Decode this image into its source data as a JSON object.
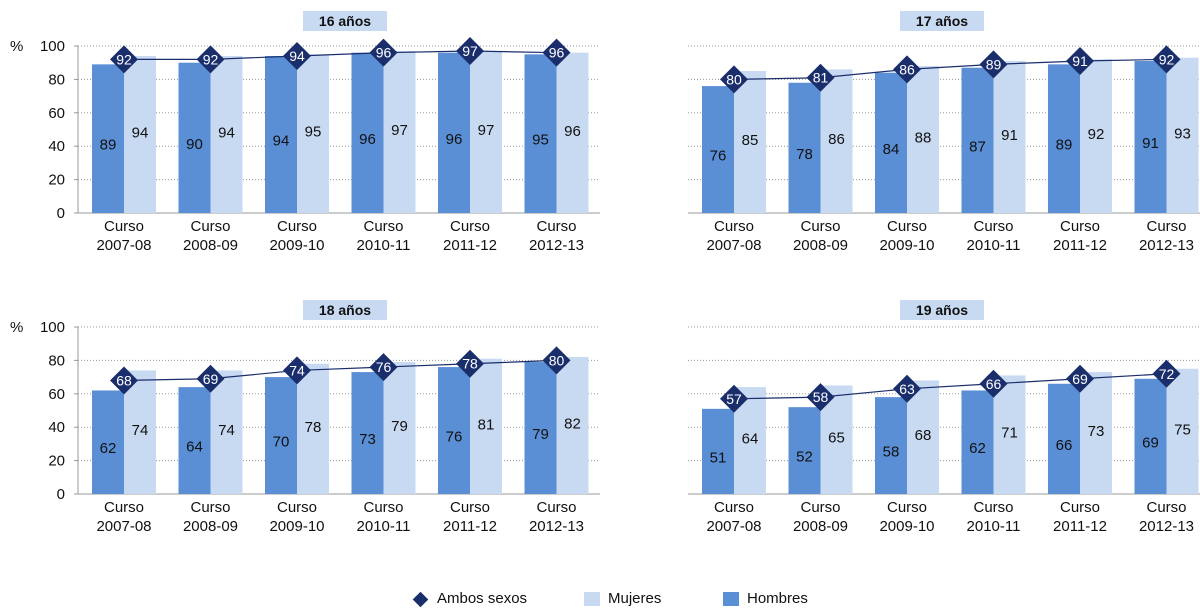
{
  "colors": {
    "hombres": "#5a8fd6",
    "mujeres": "#c8daf2",
    "ambos": "#1a2e6b",
    "title_bg": "#c8daf2",
    "grid": "#9a9a9a"
  },
  "legend": {
    "ambos": "Ambos sexos",
    "mujeres": "Mujeres",
    "hombres": "Hombres"
  },
  "chart_data": [
    {
      "type": "bar",
      "title": "16 años",
      "ylabel": "%",
      "ylim": [
        0,
        100
      ],
      "yticks": [
        0,
        20,
        40,
        60,
        80,
        100
      ],
      "categories": [
        [
          "Curso",
          "2007-08"
        ],
        [
          "Curso",
          "2008-09"
        ],
        [
          "Curso",
          "2009-10"
        ],
        [
          "Curso",
          "2010-11"
        ],
        [
          "Curso",
          "2011-12"
        ],
        [
          "Curso",
          "2012-13"
        ]
      ],
      "series": [
        {
          "name": "Hombres",
          "values": [
            89,
            90,
            94,
            96,
            96,
            95
          ]
        },
        {
          "name": "Mujeres",
          "values": [
            94,
            94,
            95,
            97,
            97,
            96
          ]
        },
        {
          "name": "Ambos sexos",
          "values": [
            92,
            92,
            94,
            96,
            97,
            96
          ]
        }
      ]
    },
    {
      "type": "bar",
      "title": "17 años",
      "ylabel": "",
      "ylim": [
        0,
        100
      ],
      "yticks": [],
      "categories": [
        [
          "Curso",
          "2007-08"
        ],
        [
          "Curso",
          "2008-09"
        ],
        [
          "Curso",
          "2009-10"
        ],
        [
          "Curso",
          "2010-11"
        ],
        [
          "Curso",
          "2011-12"
        ],
        [
          "Curso",
          "2012-13"
        ]
      ],
      "series": [
        {
          "name": "Hombres",
          "values": [
            76,
            78,
            84,
            87,
            89,
            91
          ]
        },
        {
          "name": "Mujeres",
          "values": [
            85,
            86,
            88,
            91,
            92,
            93
          ]
        },
        {
          "name": "Ambos sexos",
          "values": [
            80,
            81,
            86,
            89,
            91,
            92
          ]
        }
      ]
    },
    {
      "type": "bar",
      "title": "18 años",
      "ylabel": "%",
      "ylim": [
        0,
        100
      ],
      "yticks": [
        0,
        20,
        40,
        60,
        80,
        100
      ],
      "categories": [
        [
          "Curso",
          "2007-08"
        ],
        [
          "Curso",
          "2008-09"
        ],
        [
          "Curso",
          "2009-10"
        ],
        [
          "Curso",
          "2010-11"
        ],
        [
          "Curso",
          "2011-12"
        ],
        [
          "Curso",
          "2012-13"
        ]
      ],
      "series": [
        {
          "name": "Hombres",
          "values": [
            62,
            64,
            70,
            73,
            76,
            79
          ]
        },
        {
          "name": "Mujeres",
          "values": [
            74,
            74,
            78,
            79,
            81,
            82
          ]
        },
        {
          "name": "Ambos sexos",
          "values": [
            68,
            69,
            74,
            76,
            78,
            80
          ]
        }
      ]
    },
    {
      "type": "bar",
      "title": "19 años",
      "ylabel": "",
      "ylim": [
        0,
        100
      ],
      "yticks": [],
      "categories": [
        [
          "Curso",
          "2007-08"
        ],
        [
          "Curso",
          "2008-09"
        ],
        [
          "Curso",
          "2009-10"
        ],
        [
          "Curso",
          "2010-11"
        ],
        [
          "Curso",
          "2011-12"
        ],
        [
          "Curso",
          "2012-13"
        ]
      ],
      "series": [
        {
          "name": "Hombres",
          "values": [
            51,
            52,
            58,
            62,
            66,
            69
          ]
        },
        {
          "name": "Mujeres",
          "values": [
            64,
            65,
            68,
            71,
            73,
            75
          ]
        },
        {
          "name": "Ambos sexos",
          "values": [
            57,
            58,
            63,
            66,
            69,
            72
          ]
        }
      ]
    }
  ]
}
